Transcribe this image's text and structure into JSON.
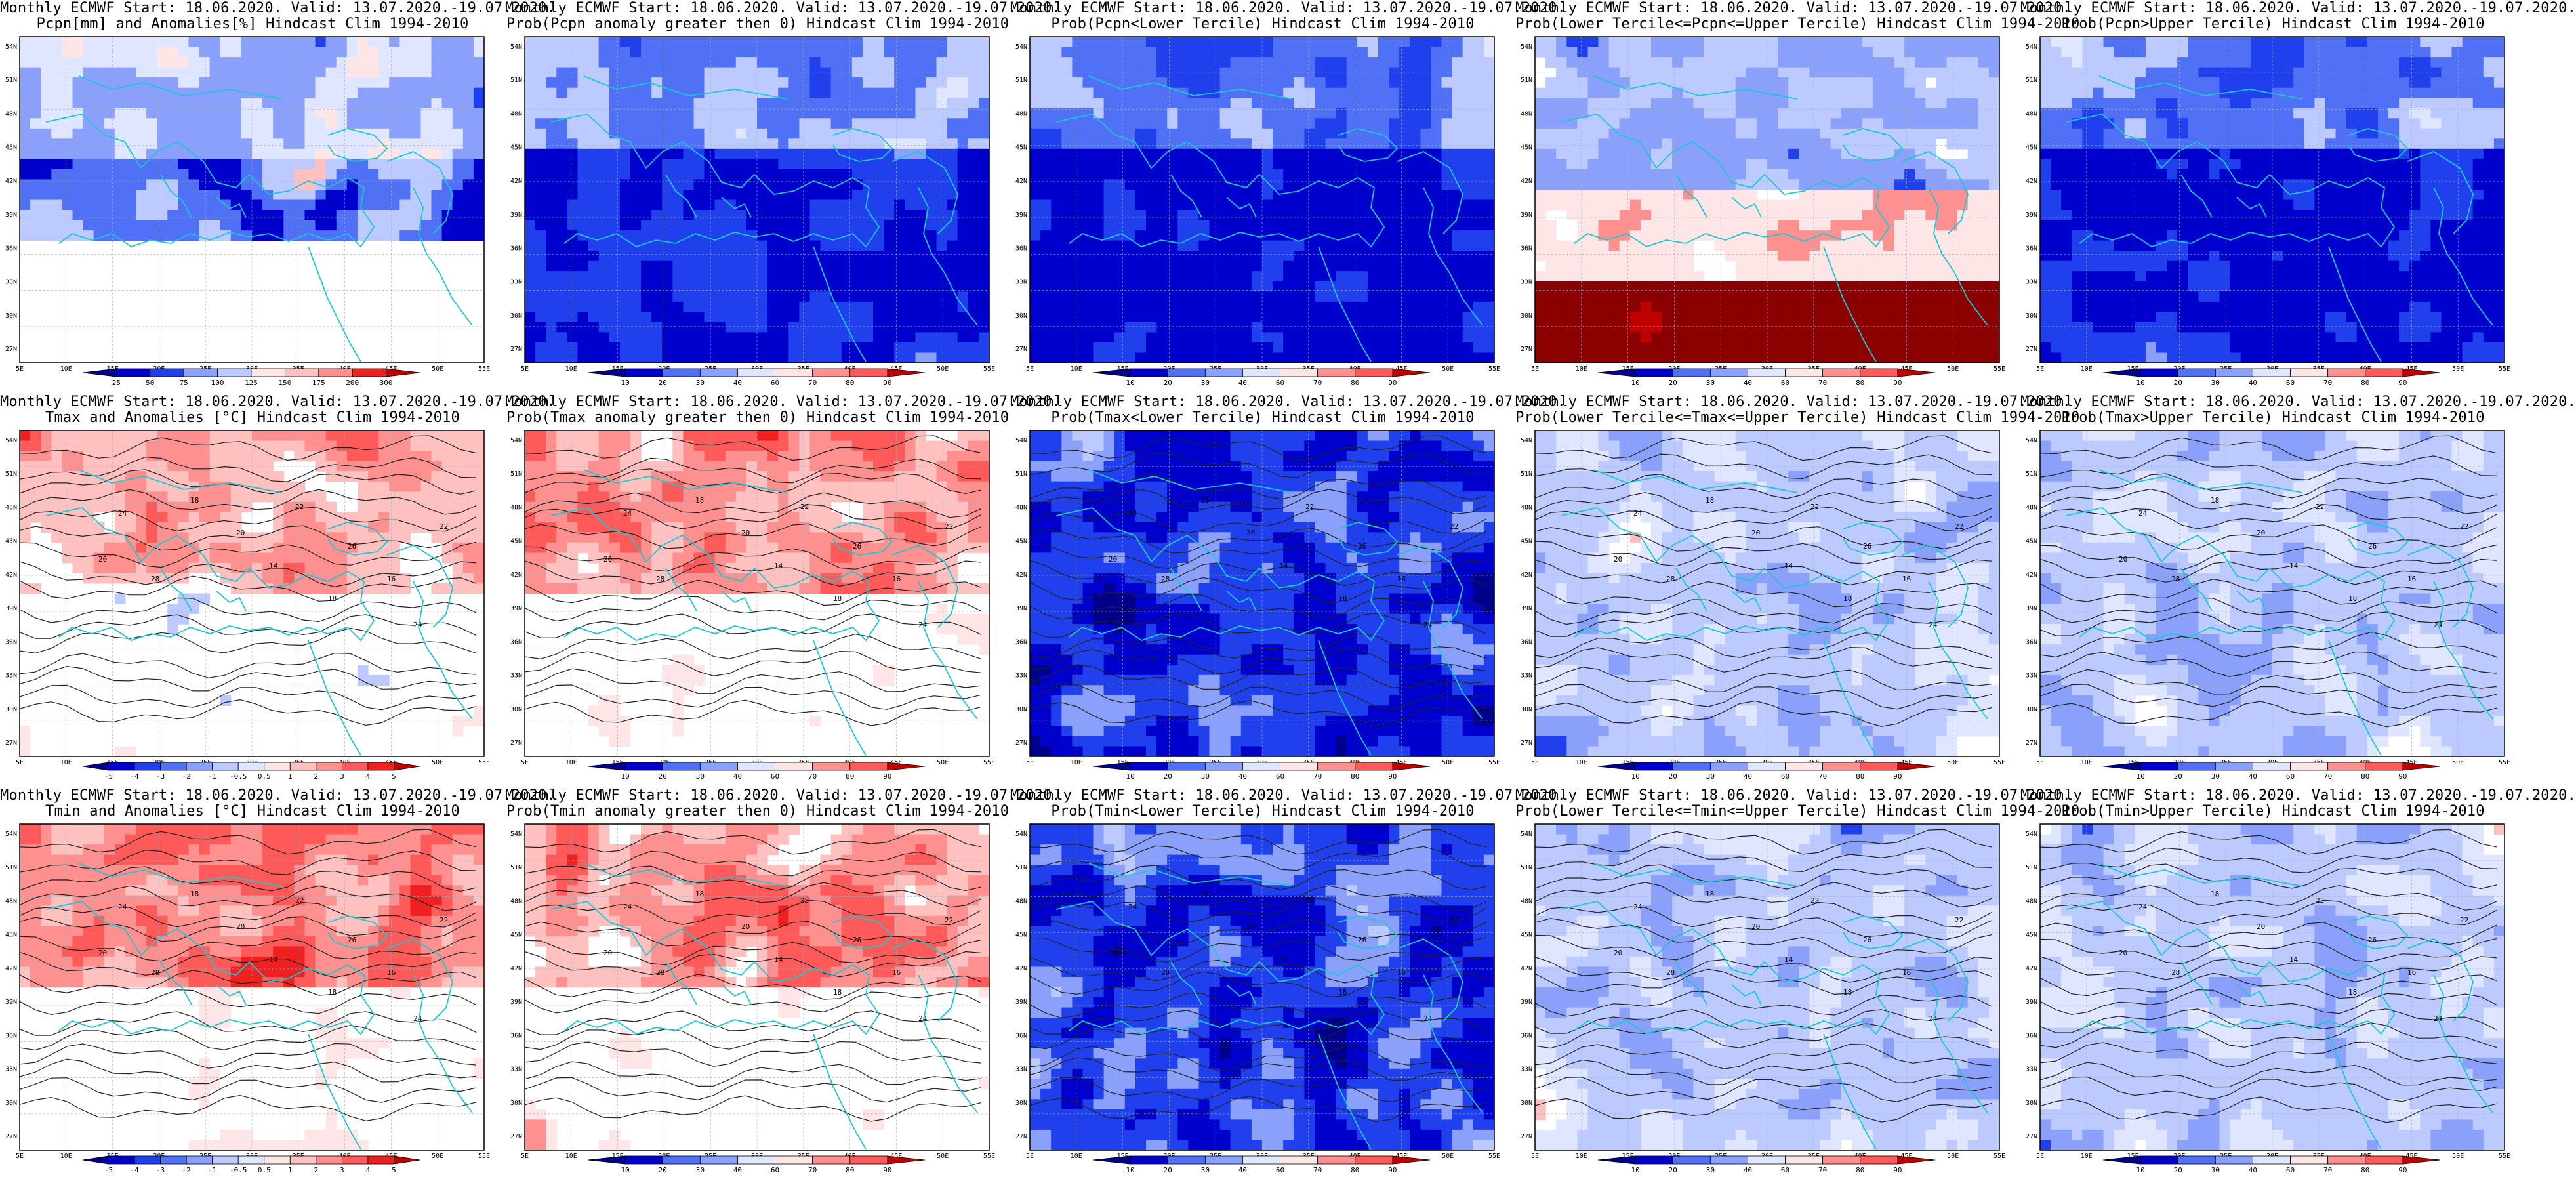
{
  "colors": {
    "ocean": "#1d2fd0",
    "land": "#ffffff",
    "coast": "#19c8d2",
    "contour": "#222222",
    "blue_scale": [
      "#00008b",
      "#0000cd",
      "#2040ee",
      "#5070f5",
      "#8aa0fa",
      "#bccaff",
      "#e0e6ff"
    ],
    "red_scale": [
      "#ffe6e6",
      "#ffc0c0",
      "#ff9090",
      "#ff5a5a",
      "#ee2020",
      "#c00000",
      "#8b0000"
    ]
  },
  "map": {
    "lat_labels": [
      "54N",
      "51N",
      "48N",
      "45N",
      "42N",
      "39N",
      "36N",
      "33N",
      "30N",
      "27N"
    ],
    "lon_labels": [
      "5E",
      "10E",
      "15E",
      "20E",
      "25E",
      "30E",
      "35E",
      "40E",
      "45E",
      "50E",
      "55E"
    ]
  },
  "colorbars": {
    "precip": [
      "25",
      "50",
      "75",
      "100",
      "125",
      "150",
      "175",
      "200",
      "300"
    ],
    "prob": [
      "10",
      "20",
      "30",
      "40",
      "60",
      "70",
      "80",
      "90"
    ],
    "temp": [
      "-5",
      "-4",
      "-3",
      "-2",
      "-1",
      "-0.5",
      "0.5",
      "1",
      "2",
      "3",
      "4",
      "5"
    ]
  },
  "panels": [
    {
      "line1": "Monthly ECMWF Start: 18.06.2020. Valid: 13.07.2020.-19.07.2020.",
      "line2": "Pcpn[mm] and Anomalies[%] Hindcast Clim 1994-2010",
      "bar": "precip",
      "style": "pcpn",
      "contours": false
    },
    {
      "line1": "Monthly ECMWF Start: 18.06.2020. Valid: 13.07.2020.-19.07.2020.",
      "line2": "Prob(Pcpn anomaly greater then 0) Hindcast Clim 1994-2010",
      "bar": "prob",
      "style": "pblue",
      "contours": false
    },
    {
      "line1": "Monthly ECMWF Start: 18.06.2020. Valid: 13.07.2020.-19.07.2020.",
      "line2": "Prob(Pcpn<Lower Tercile) Hindcast Clim 1994-2010",
      "bar": "prob",
      "style": "pblue",
      "contours": false
    },
    {
      "line1": "Monthly ECMWF Start: 18.06.2020. Valid: 13.07.2020.-19.07.2020.",
      "line2": "Prob(Lower Tercile<=Pcpn<=Upper Tercile) Hindcast Clim 1994-2010",
      "bar": "prob",
      "style": "pred",
      "contours": false
    },
    {
      "line1": "Monthly ECMWF Start: 18.06.2020. Valid: 13.07.2020.-19.07.2020.",
      "line2": "Prob(Pcpn>Upper Tercile) Hindcast Clim 1994-2010",
      "bar": "prob",
      "style": "pblue",
      "contours": false
    },
    {
      "line1": "Monthly ECMWF Start: 18.06.2020. Valid: 13.07.2020.-19.07.2020.",
      "line2": "Tmax and Anomalies [°C] Hindcast Clim 1994-2010",
      "bar": "temp",
      "style": "tred",
      "contours": true
    },
    {
      "line1": "Monthly ECMWF Start: 18.06.2020. Valid: 13.07.2020.-19.07.2020.",
      "line2": "Prob(Tmax anomaly greater then 0) Hindcast Clim 1994-2010",
      "bar": "prob",
      "style": "tred",
      "contours": true
    },
    {
      "line1": "Monthly ECMWF Start: 18.06.2020. Valid: 13.07.2020.-19.07.2020.",
      "line2": "Prob(Tmax<Lower Tercile) Hindcast Clim 1994-2010",
      "bar": "prob",
      "style": "tblue",
      "contours": true
    },
    {
      "line1": "Monthly ECMWF Start: 18.06.2020. Valid: 13.07.2020.-19.07.2020.",
      "line2": "Prob(Lower Tercile<=Tmax<=Upper Tercile) Hindcast Clim 1994-2010",
      "bar": "prob",
      "style": "tmid",
      "contours": true
    },
    {
      "line1": "Monthly ECMWF Start: 18.06.2020. Valid: 13.07.2020.-19.07.2020.",
      "line2": "Prob(Tmax>Upper Tercile) Hindcast Clim 1994-2010",
      "bar": "prob",
      "style": "tmid",
      "contours": true
    },
    {
      "line1": "Monthly ECMWF Start: 18.06.2020. Valid: 13.07.2020.-19.07.2020.",
      "line2": "Tmin and Anomalies [°C] Hindcast Clim 1994-2010",
      "bar": "temp",
      "style": "tred",
      "contours": true
    },
    {
      "line1": "Monthly ECMWF Start: 18.06.2020. Valid: 13.07.2020.-19.07.2020.",
      "line2": "Prob(Tmin anomaly greater then 0) Hindcast Clim 1994-2010",
      "bar": "prob",
      "style": "tred",
      "contours": true
    },
    {
      "line1": "Monthly ECMWF Start: 18.06.2020. Valid: 13.07.2020.-19.07.2020.",
      "line2": "Prob(Tmin<Lower Tercile) Hindcast Clim 1994-2010",
      "bar": "prob",
      "style": "tblue",
      "contours": true
    },
    {
      "line1": "Monthly ECMWF Start: 18.06.2020. Valid: 13.07.2020.-19.07.2020.",
      "line2": "Prob(Lower Tercile<=Tmin<=Upper Tercile) Hindcast Clim 1994-2010",
      "bar": "prob",
      "style": "tmid",
      "contours": true
    },
    {
      "line1": "Monthly ECMWF Start: 18.06.2020. Valid: 13.07.2020.-19.07.2020.",
      "line2": "Prob(Tmin>Upper Tercile) Hindcast Clim 1994-2010",
      "bar": "prob",
      "style": "tmid",
      "contours": true
    }
  ]
}
